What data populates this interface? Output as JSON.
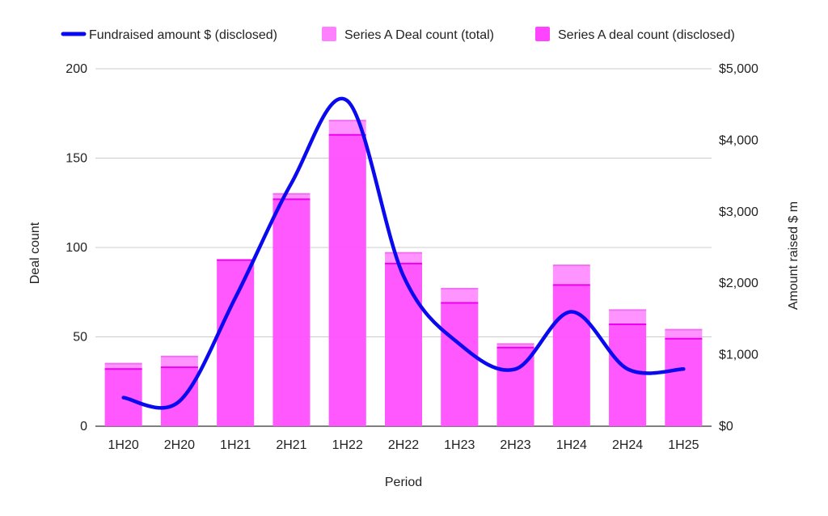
{
  "chart_data": {
    "type": "bar",
    "categories": [
      "1H20",
      "2H20",
      "1H21",
      "2H21",
      "1H22",
      "2H22",
      "1H23",
      "2H23",
      "1H24",
      "2H24",
      "1H25"
    ],
    "series": [
      {
        "name": "Series A Deal count (total)",
        "type": "bar",
        "axis": "left",
        "color": "#ff80ff",
        "values": [
          35,
          39,
          93,
          130,
          171,
          97,
          77,
          46,
          90,
          65,
          54
        ]
      },
      {
        "name": "Series A deal count (disclosed)",
        "type": "bar",
        "axis": "left",
        "color": "#ff44ff",
        "values": [
          32,
          33,
          93,
          127,
          163,
          91,
          69,
          44,
          79,
          57,
          49
        ]
      },
      {
        "name": "Fundraised amount $ (disclosed)",
        "type": "line",
        "axis": "right",
        "color": "#0a0aee",
        "values": [
          400,
          350,
          1800,
          3400,
          4550,
          2100,
          1150,
          800,
          1600,
          800,
          800
        ]
      }
    ],
    "xlabel": "Period",
    "ylabel": "Deal count",
    "y2label": "Amount raised $ m",
    "ylim": [
      0,
      200
    ],
    "y2lim": [
      0,
      5000
    ],
    "yticks": [
      "0",
      "50",
      "100",
      "150",
      "200"
    ],
    "y2ticks": [
      "$0",
      "$1,000",
      "$2,000",
      "$3,000",
      "$4,000",
      "$5,000"
    ],
    "grid": true,
    "legend": "top"
  }
}
